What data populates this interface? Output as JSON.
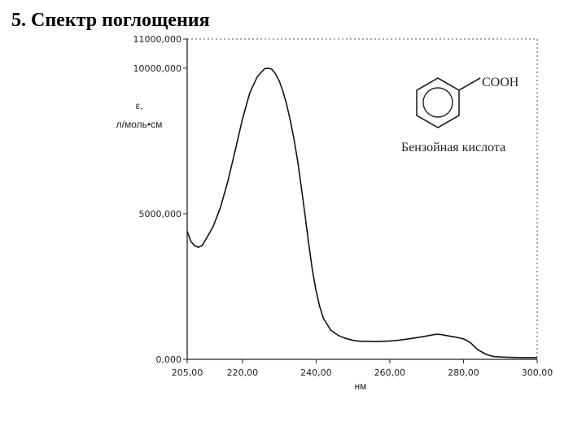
{
  "slide": {
    "title": "5. Спектр поглощения"
  },
  "chart_data": {
    "type": "line",
    "xlabel": "нм",
    "ylabel_line1": "ε,",
    "ylabel_line2": "л/моль•см",
    "xlim": [
      205,
      300
    ],
    "ylim": [
      0,
      11000
    ],
    "x_ticks": [
      {
        "value": 205,
        "label": "205,00"
      },
      {
        "value": 220,
        "label": "220,00"
      },
      {
        "value": 240,
        "label": "240,00"
      },
      {
        "value": 260,
        "label": "260,00"
      },
      {
        "value": 280,
        "label": "280,00"
      },
      {
        "value": 300,
        "label": "300,00"
      }
    ],
    "y_ticks": [
      {
        "value": 0,
        "label": "0,000"
      },
      {
        "value": 5000,
        "label": "5000,000"
      },
      {
        "value": 10000,
        "label": "10000,000"
      },
      {
        "value": 11000,
        "label": "11000,000"
      }
    ],
    "line_color": "#111111",
    "series": [
      {
        "x": [
          205,
          206,
          207,
          208,
          209,
          210,
          212,
          214,
          216,
          218,
          220,
          222,
          224,
          226,
          227,
          228,
          229,
          230,
          231,
          232,
          233,
          234,
          235,
          236,
          237,
          238,
          239,
          240,
          241,
          242,
          244,
          246,
          248,
          250,
          252,
          254,
          256,
          258,
          260,
          262,
          264,
          266,
          268,
          270,
          272,
          273,
          274,
          276,
          278,
          280,
          281,
          282,
          283,
          284,
          286,
          288,
          290,
          292,
          294,
          296,
          298,
          300
        ],
        "y": [
          4400,
          4050,
          3900,
          3850,
          3900,
          4100,
          4550,
          5200,
          6100,
          7150,
          8250,
          9150,
          9700,
          9980,
          10000,
          9960,
          9800,
          9550,
          9200,
          8750,
          8200,
          7550,
          6800,
          5900,
          4950,
          3950,
          3050,
          2350,
          1800,
          1400,
          1000,
          820,
          720,
          650,
          620,
          620,
          610,
          620,
          630,
          650,
          680,
          720,
          760,
          800,
          850,
          860,
          850,
          800,
          760,
          700,
          640,
          560,
          430,
          320,
          180,
          100,
          80,
          70,
          65,
          60,
          60,
          60
        ]
      }
    ],
    "annotations": {
      "substituent": "COOH",
      "compound_name": "Бензойная кислота"
    }
  }
}
